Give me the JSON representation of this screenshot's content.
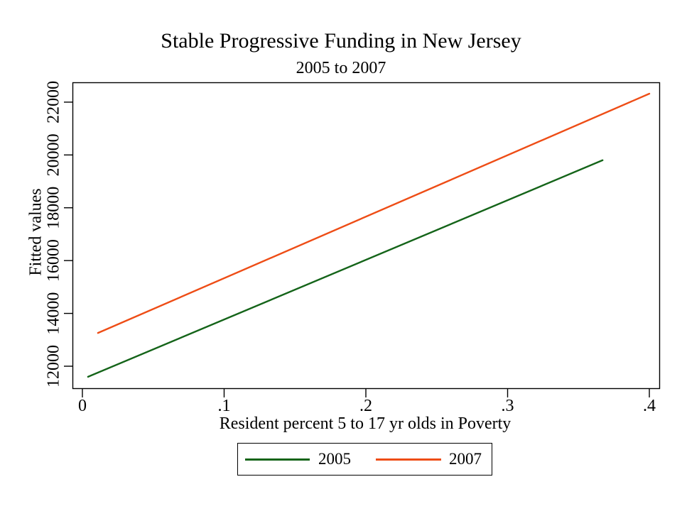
{
  "header": {
    "title": "Stable Progressive Funding in New Jersey",
    "subtitle": "2005 to 2007"
  },
  "axes": {
    "y_title": "Fitted values",
    "x_title": "Resident percent 5 to 17 yr olds in Poverty"
  },
  "colors": {
    "background": "#ffffff",
    "axis": "#000000",
    "text": "#000000",
    "series_2005": "#146419",
    "series_2007": "#ee4d16"
  },
  "chart_data": {
    "type": "line",
    "title": "Stable Progressive Funding in New Jersey",
    "subtitle": "2005 to 2007",
    "xlabel": "Resident percent 5 to 17 yr olds in Poverty",
    "ylabel": "Fitted values",
    "grid": false,
    "legend_position": "bottom",
    "xlim": [
      -0.007,
      0.4075
    ],
    "ylim": [
      11140,
      22750
    ],
    "x_ticks": {
      "values": [
        0,
        0.1,
        0.2,
        0.3,
        0.4
      ],
      "labels": [
        "0",
        ".1",
        ".2",
        ".3",
        ".4"
      ]
    },
    "y_ticks": {
      "values": [
        12000,
        14000,
        16000,
        18000,
        20000,
        22000
      ],
      "labels": [
        "12000",
        "14000",
        "16000",
        "18000",
        "20000",
        "22000"
      ]
    },
    "series": [
      {
        "name": "2005",
        "color": "#146419",
        "x": [
          0.004,
          0.367
        ],
        "y": [
          11600,
          19800
        ]
      },
      {
        "name": "2007",
        "color": "#ee4d16",
        "x": [
          0.011,
          0.4
        ],
        "y": [
          13260,
          22320
        ]
      }
    ]
  }
}
